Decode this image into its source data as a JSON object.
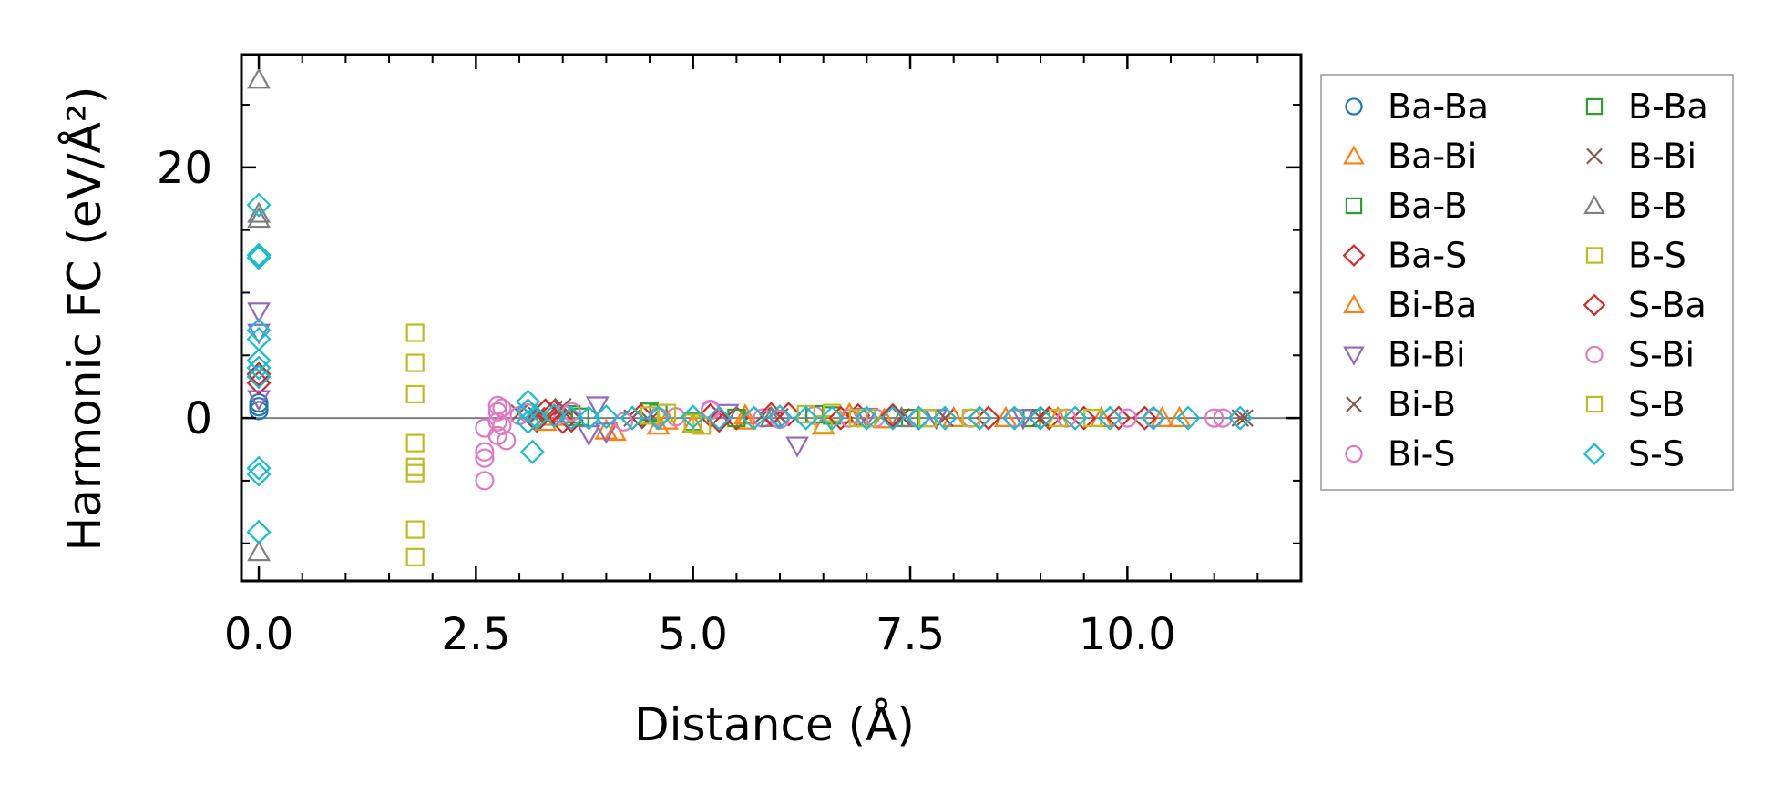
{
  "chart_data": {
    "type": "scatter",
    "xlabel": "Distance (Å)",
    "ylabel": "Harmonic FC (eV/Å²)",
    "xlim": [
      -0.2,
      12.0
    ],
    "ylim": [
      -13.0,
      29.0
    ],
    "x_ticks": [
      0.0,
      2.5,
      5.0,
      7.5,
      10.0
    ],
    "x_tick_labels": [
      "0.0",
      "2.5",
      "5.0",
      "7.5",
      "10.0"
    ],
    "y_ticks": [
      0,
      20
    ],
    "y_tick_labels": [
      "0",
      "20"
    ],
    "zero_line": true,
    "grid": false,
    "legend_position": "outside-right",
    "series": [
      {
        "name": "Ba-Ba",
        "marker": "circle",
        "color": "#1f77b4",
        "points": [
          [
            0.0,
            1.2
          ],
          [
            0.0,
            0.6
          ],
          [
            0.0,
            0.9
          ]
        ]
      },
      {
        "name": "Ba-Bi",
        "marker": "triangle-up",
        "color": "#ff7f0e",
        "points": [
          [
            3.4,
            0.1
          ],
          [
            4.1,
            -1.1
          ],
          [
            4.6,
            -0.6
          ],
          [
            5.0,
            -0.5
          ],
          [
            5.6,
            -0.2
          ],
          [
            6.5,
            -0.6
          ],
          [
            7.2,
            -0.1
          ],
          [
            8.6,
            0.0
          ],
          [
            9.7,
            0.0
          ],
          [
            10.4,
            0.0
          ]
        ]
      },
      {
        "name": "Ba-B",
        "marker": "square",
        "color": "#2ca02c",
        "points": [
          [
            3.6,
            0.3
          ],
          [
            4.5,
            0.5
          ],
          [
            5.0,
            -0.3
          ],
          [
            6.6,
            0.2
          ],
          [
            7.5,
            0.0
          ],
          [
            8.9,
            0.0
          ]
        ]
      },
      {
        "name": "Ba-S",
        "marker": "diamond",
        "color": "#d62728",
        "points": [
          [
            0.0,
            3.5
          ],
          [
            0.0,
            2.8
          ],
          [
            3.2,
            -0.2
          ],
          [
            3.4,
            0.5
          ],
          [
            3.6,
            -0.2
          ],
          [
            4.4,
            0.2
          ],
          [
            5.2,
            0.2
          ],
          [
            5.5,
            0.0
          ],
          [
            6.1,
            0.3
          ],
          [
            6.9,
            0.2
          ],
          [
            7.6,
            0.0
          ],
          [
            8.4,
            0.0
          ],
          [
            9.1,
            0.0
          ],
          [
            9.5,
            0.0
          ],
          [
            10.2,
            0.0
          ]
        ]
      },
      {
        "name": "Bi-Ba",
        "marker": "triangle-up",
        "color": "#ff7f0e",
        "points": [
          [
            3.3,
            -0.3
          ],
          [
            4.0,
            -1.0
          ],
          [
            4.7,
            -0.2
          ],
          [
            5.6,
            0.2
          ],
          [
            6.8,
            0.3
          ],
          [
            8.0,
            0.0
          ],
          [
            9.2,
            0.0
          ],
          [
            10.6,
            0.0
          ]
        ]
      },
      {
        "name": "Bi-Bi",
        "marker": "triangle-down",
        "color": "#9467bd",
        "points": [
          [
            0.0,
            8.5
          ],
          [
            0.0,
            6.8
          ],
          [
            0.0,
            1.5
          ],
          [
            3.8,
            -1.3
          ],
          [
            3.9,
            1.0
          ],
          [
            4.0,
            -1.1
          ],
          [
            5.4,
            0.4
          ],
          [
            6.2,
            -2.2
          ],
          [
            7.0,
            0.1
          ],
          [
            7.8,
            0.0
          ],
          [
            8.8,
            0.0
          ]
        ]
      },
      {
        "name": "Bi-B",
        "marker": "x",
        "color": "#8c564b",
        "points": [
          [
            3.0,
            0.4
          ],
          [
            3.4,
            0.7
          ],
          [
            4.3,
            0.0
          ],
          [
            5.8,
            0.2
          ],
          [
            7.4,
            0.1
          ],
          [
            9.0,
            0.0
          ],
          [
            11.3,
            0.0
          ]
        ]
      },
      {
        "name": "Bi-S",
        "marker": "circle",
        "color": "#e377c2",
        "points": [
          [
            2.6,
            -0.8
          ],
          [
            2.6,
            -2.7
          ],
          [
            2.6,
            -3.2
          ],
          [
            2.6,
            -5.0
          ],
          [
            2.75,
            1.0
          ],
          [
            2.75,
            0.5
          ],
          [
            2.75,
            -0.3
          ],
          [
            2.75,
            -1.4
          ],
          [
            2.85,
            -1.8
          ],
          [
            3.1,
            0.4
          ],
          [
            3.5,
            0.3
          ],
          [
            4.2,
            -0.3
          ],
          [
            4.8,
            0.1
          ],
          [
            5.2,
            0.7
          ],
          [
            5.8,
            0.0
          ],
          [
            6.4,
            0.2
          ],
          [
            7.1,
            0.0
          ],
          [
            8.2,
            0.0
          ],
          [
            9.3,
            0.0
          ],
          [
            10.3,
            0.0
          ],
          [
            11.1,
            0.0
          ]
        ]
      },
      {
        "name": "B-Ba",
        "marker": "square",
        "color": "#2ca02c",
        "points": [
          [
            3.7,
            0.1
          ],
          [
            4.6,
            0.4
          ],
          [
            5.5,
            0.0
          ],
          [
            6.4,
            0.3
          ],
          [
            7.7,
            0.0
          ]
        ]
      },
      {
        "name": "B-Bi",
        "marker": "x",
        "color": "#8c564b",
        "points": [
          [
            3.2,
            0.2
          ],
          [
            3.5,
            0.9
          ],
          [
            4.5,
            -0.2
          ],
          [
            6.0,
            0.1
          ],
          [
            7.9,
            0.0
          ],
          [
            11.35,
            0.0
          ]
        ]
      },
      {
        "name": "B-B",
        "marker": "triangle-up",
        "color": "#7f7f7f",
        "points": [
          [
            0.0,
            27.0
          ],
          [
            0.0,
            16.3
          ],
          [
            0.0,
            15.9
          ],
          [
            0.0,
            -10.7
          ],
          [
            5.9,
            0.0
          ],
          [
            7.4,
            0.0
          ]
        ]
      },
      {
        "name": "B-S",
        "marker": "square",
        "color": "#bcbd22",
        "points": [
          [
            1.8,
            6.8
          ],
          [
            1.8,
            4.4
          ],
          [
            1.8,
            1.9
          ],
          [
            1.8,
            -2.0
          ],
          [
            1.8,
            -3.9
          ],
          [
            1.8,
            -4.4
          ],
          [
            1.8,
            -8.9
          ],
          [
            1.8,
            -11.1
          ],
          [
            4.5,
            0.2
          ],
          [
            5.0,
            -0.4
          ],
          [
            6.5,
            -0.5
          ],
          [
            6.6,
            0.4
          ],
          [
            7.0,
            0.0
          ],
          [
            8.2,
            0.0
          ],
          [
            9.6,
            0.0
          ]
        ]
      },
      {
        "name": "S-Ba",
        "marker": "diamond",
        "color": "#d62728",
        "points": [
          [
            3.3,
            0.6
          ],
          [
            3.5,
            -0.3
          ],
          [
            4.3,
            0.0
          ],
          [
            5.3,
            -0.2
          ],
          [
            5.9,
            0.3
          ],
          [
            6.7,
            0.0
          ],
          [
            7.3,
            0.2
          ],
          [
            8.3,
            0.0
          ],
          [
            9.0,
            0.0
          ],
          [
            9.9,
            0.0
          ]
        ]
      },
      {
        "name": "S-Bi",
        "marker": "circle",
        "color": "#e377c2",
        "points": [
          [
            2.8,
            0.8
          ],
          [
            2.8,
            -0.6
          ],
          [
            3.0,
            0.2
          ],
          [
            3.6,
            0.5
          ],
          [
            4.6,
            0.1
          ],
          [
            5.2,
            0.6
          ],
          [
            6.0,
            -0.1
          ],
          [
            6.8,
            0.0
          ],
          [
            7.6,
            0.0
          ],
          [
            8.7,
            0.0
          ],
          [
            10.0,
            0.0
          ],
          [
            11.0,
            0.0
          ]
        ]
      },
      {
        "name": "S-B",
        "marker": "square",
        "color": "#bcbd22",
        "points": [
          [
            4.7,
            0.4
          ],
          [
            5.1,
            -0.6
          ],
          [
            6.3,
            0.3
          ],
          [
            6.9,
            0.0
          ],
          [
            7.7,
            0.0
          ],
          [
            9.2,
            0.0
          ]
        ]
      },
      {
        "name": "S-S",
        "marker": "diamond",
        "color": "#17becf",
        "points": [
          [
            0.0,
            17.0
          ],
          [
            0.0,
            13.0
          ],
          [
            0.0,
            12.8
          ],
          [
            0.0,
            7.0
          ],
          [
            0.0,
            6.3
          ],
          [
            0.0,
            4.6
          ],
          [
            0.0,
            4.0
          ],
          [
            0.0,
            3.3
          ],
          [
            0.0,
            -4.0
          ],
          [
            0.0,
            -4.5
          ],
          [
            0.0,
            -9.1
          ],
          [
            3.1,
            1.3
          ],
          [
            3.1,
            0.6
          ],
          [
            3.1,
            -0.3
          ],
          [
            3.15,
            -2.7
          ],
          [
            3.2,
            0.0
          ],
          [
            3.4,
            0.2
          ],
          [
            3.6,
            0.0
          ],
          [
            3.8,
            0.0
          ],
          [
            4.0,
            0.1
          ],
          [
            4.3,
            0.0
          ],
          [
            4.6,
            0.0
          ],
          [
            5.0,
            0.1
          ],
          [
            5.3,
            0.0
          ],
          [
            5.7,
            0.0
          ],
          [
            6.0,
            0.1
          ],
          [
            6.3,
            0.0
          ],
          [
            6.6,
            0.0
          ],
          [
            7.0,
            0.0
          ],
          [
            7.3,
            0.0
          ],
          [
            7.6,
            0.0
          ],
          [
            7.9,
            0.0
          ],
          [
            8.3,
            0.0
          ],
          [
            8.7,
            0.0
          ],
          [
            9.0,
            0.0
          ],
          [
            9.4,
            0.0
          ],
          [
            9.8,
            0.0
          ],
          [
            10.3,
            0.0
          ],
          [
            10.7,
            0.0
          ],
          [
            11.3,
            0.0
          ]
        ]
      }
    ]
  }
}
